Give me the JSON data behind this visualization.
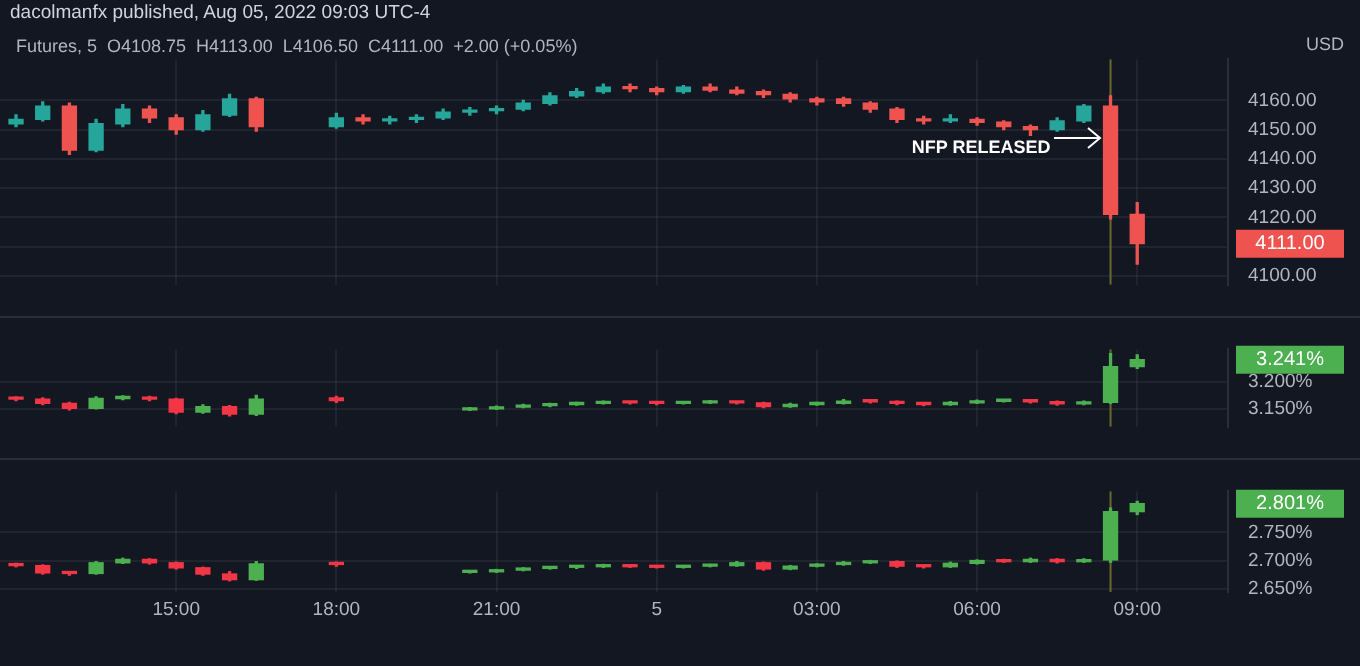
{
  "chart_data": [
    {
      "type": "candlestick",
      "title": "dacolmanfx published, Aug 05, 2022 09:03 UTC-4",
      "subtitle": "Futures, 5  O4108.75  H4113.00  L4106.50  C4111.00  +2.00 (+0.05%)",
      "ylabel": "USD",
      "x": [
        "2022-08-04T12:00",
        "2022-08-04T12:30",
        "2022-08-04T13:00",
        "2022-08-04T13:30",
        "2022-08-04T14:00",
        "2022-08-04T14:30",
        "2022-08-04T15:00",
        "2022-08-04T15:30",
        "2022-08-04T16:00",
        "2022-08-04T16:30",
        "2022-08-04T18:00",
        "2022-08-04T18:30",
        "2022-08-04T19:00",
        "2022-08-04T19:30",
        "2022-08-04T20:00",
        "2022-08-04T20:30",
        "2022-08-04T21:00",
        "2022-08-04T21:30",
        "2022-08-04T22:00",
        "2022-08-04T22:30",
        "2022-08-04T23:00",
        "2022-08-04T23:30",
        "2022-08-05T00:00",
        "2022-08-05T00:30",
        "2022-08-05T01:00",
        "2022-08-05T01:30",
        "2022-08-05T02:00",
        "2022-08-05T02:30",
        "2022-08-05T03:00",
        "2022-08-05T03:30",
        "2022-08-05T04:00",
        "2022-08-05T04:30",
        "2022-08-05T05:00",
        "2022-08-05T05:30",
        "2022-08-05T06:00",
        "2022-08-05T06:30",
        "2022-08-05T07:00",
        "2022-08-05T07:30",
        "2022-08-05T08:00",
        "2022-08-05T08:30",
        "2022-08-05T09:00"
      ],
      "ohlc": [
        [
          4152,
          4155,
          4151,
          4153.5
        ],
        [
          4153.5,
          4159.5,
          4153,
          4158
        ],
        [
          4158,
          4159,
          4141.5,
          4143
        ],
        [
          4143,
          4153.5,
          4142.5,
          4152
        ],
        [
          4152,
          4158.5,
          4151,
          4157
        ],
        [
          4157,
          4158,
          4152.5,
          4154
        ],
        [
          4154,
          4155,
          4148.5,
          4150
        ],
        [
          4150,
          4156.5,
          4149.5,
          4155
        ],
        [
          4155,
          4162,
          4154.5,
          4160.5
        ],
        [
          4160.5,
          4161,
          4149.5,
          4151
        ],
        [
          4151,
          4155.5,
          4150.5,
          4154
        ],
        [
          4154,
          4155,
          4152,
          4153
        ],
        [
          4153,
          4154.5,
          4152,
          4153.5
        ],
        [
          4153.5,
          4155,
          4152.5,
          4154
        ],
        [
          4154,
          4157,
          4153.5,
          4156
        ],
        [
          4156,
          4157.5,
          4155,
          4156.5
        ],
        [
          4156.5,
          4158,
          4155.5,
          4157
        ],
        [
          4157,
          4160,
          4156.5,
          4159
        ],
        [
          4159,
          4162.5,
          4158.5,
          4161.5
        ],
        [
          4161.5,
          4164,
          4161,
          4163
        ],
        [
          4163,
          4165.5,
          4162.5,
          4164.5
        ],
        [
          4164.5,
          4165.5,
          4163,
          4164
        ],
        [
          4164,
          4164.5,
          4162,
          4163
        ],
        [
          4163,
          4165,
          4162.5,
          4164.5
        ],
        [
          4164.5,
          4165.5,
          4163,
          4163.5
        ],
        [
          4163.5,
          4164.5,
          4162,
          4162.5
        ],
        [
          4163,
          4163.5,
          4161,
          4162
        ],
        [
          4162,
          4162.5,
          4159.5,
          4160.5
        ],
        [
          4160.5,
          4161,
          4158.5,
          4159.5
        ],
        [
          4160.5,
          4161,
          4158,
          4159
        ],
        [
          4159,
          4159.5,
          4156,
          4157
        ],
        [
          4157,
          4157.5,
          4152.5,
          4153.5
        ],
        [
          4153.5,
          4154.5,
          4152,
          4153
        ],
        [
          4153,
          4155,
          4152.5,
          4153.5
        ],
        [
          4153.5,
          4154,
          4151.5,
          4152.5
        ],
        [
          4152.5,
          4153,
          4150,
          4151
        ],
        [
          4151,
          4151.5,
          4148,
          4150
        ],
        [
          4150,
          4154,
          4149.5,
          4153
        ],
        [
          4153,
          4158.5,
          4152.5,
          4158
        ],
        [
          4158,
          4161.5,
          4119.5,
          4121
        ],
        [
          4121,
          4125,
          4104,
          4111
        ]
      ],
      "value_labels": [
        null,
        null,
        null,
        null,
        null,
        null,
        null,
        null,
        null,
        null,
        null,
        null,
        null,
        null,
        null,
        null,
        null,
        null,
        null,
        null,
        null,
        null,
        null,
        null,
        null,
        null,
        null,
        null,
        null,
        null,
        null,
        null,
        null,
        null,
        null,
        null,
        null,
        null,
        null,
        null,
        "4111.00"
      ],
      "xlim": [
        "2022-08-04T11:42",
        "2022-08-05T10:42"
      ],
      "xticks": [
        {
          "value": "2022-08-04T15:00",
          "label": null
        },
        {
          "value": "2022-08-04T18:00",
          "label": null
        },
        {
          "value": "2022-08-04T21:00",
          "label": null
        },
        {
          "value": "2022-08-05T00:00",
          "label": null
        },
        {
          "value": "2022-08-05T03:00",
          "label": null
        },
        {
          "value": "2022-08-05T06:00",
          "label": null
        },
        {
          "value": "2022-08-05T09:00",
          "label": null
        }
      ],
      "ylim": [
        4097,
        4174
      ],
      "yticks": [
        {
          "value": 4100,
          "label": "4100.00"
        },
        {
          "value": 4110,
          "label": null
        },
        {
          "value": 4120,
          "label": "4120.00"
        },
        {
          "value": 4130,
          "label": "4130.00"
        },
        {
          "value": 4140,
          "label": "4140.00"
        },
        {
          "value": 4150,
          "label": "4150.00"
        },
        {
          "value": 4160,
          "label": "4160.00"
        }
      ],
      "ref_lines": [
        {
          "axis": "x",
          "value": "2022-08-05T08:30",
          "color": "#6b6a2e"
        }
      ],
      "annotations": [
        "NFP RELEASED"
      ],
      "grid": true,
      "tick_labels": "y"
    },
    {
      "type": "candlestick",
      "x": [
        "2022-08-04T12:00",
        "2022-08-04T12:30",
        "2022-08-04T13:00",
        "2022-08-04T13:30",
        "2022-08-04T14:00",
        "2022-08-04T14:30",
        "2022-08-04T15:00",
        "2022-08-04T15:30",
        "2022-08-04T16:00",
        "2022-08-04T16:30",
        "2022-08-04T18:00",
        "2022-08-04T20:30",
        "2022-08-04T21:00",
        "2022-08-04T21:30",
        "2022-08-04T22:00",
        "2022-08-04T22:30",
        "2022-08-04T23:00",
        "2022-08-04T23:30",
        "2022-08-05T00:00",
        "2022-08-05T00:30",
        "2022-08-05T01:00",
        "2022-08-05T01:30",
        "2022-08-05T02:00",
        "2022-08-05T02:30",
        "2022-08-05T03:00",
        "2022-08-05T03:30",
        "2022-08-05T04:00",
        "2022-08-05T04:30",
        "2022-08-05T05:00",
        "2022-08-05T05:30",
        "2022-08-05T06:00",
        "2022-08-05T06:30",
        "2022-08-05T07:00",
        "2022-08-05T07:30",
        "2022-08-05T08:00",
        "2022-08-05T08:30",
        "2022-08-05T09:00"
      ],
      "ohlc": [
        [
          3.17,
          3.172,
          3.165,
          3.168
        ],
        [
          3.168,
          3.17,
          3.158,
          3.16
        ],
        [
          3.16,
          3.162,
          3.148,
          3.151
        ],
        [
          3.151,
          3.172,
          3.15,
          3.169
        ],
        [
          3.169,
          3.174,
          3.167,
          3.171
        ],
        [
          3.171,
          3.173,
          3.165,
          3.168
        ],
        [
          3.168,
          3.169,
          3.141,
          3.144
        ],
        [
          3.144,
          3.157,
          3.142,
          3.154
        ],
        [
          3.154,
          3.156,
          3.137,
          3.14
        ],
        [
          3.14,
          3.175,
          3.138,
          3.168
        ],
        [
          3.17,
          3.173,
          3.162,
          3.165
        ],
        [
          3.148,
          3.152,
          3.147,
          3.15
        ],
        [
          3.15,
          3.155,
          3.149,
          3.153
        ],
        [
          3.153,
          3.158,
          3.152,
          3.156
        ],
        [
          3.156,
          3.16,
          3.154,
          3.158
        ],
        [
          3.158,
          3.162,
          3.157,
          3.16
        ],
        [
          3.16,
          3.164,
          3.159,
          3.162
        ],
        [
          3.162,
          3.163,
          3.159,
          3.161
        ],
        [
          3.161,
          3.162,
          3.158,
          3.16
        ],
        [
          3.16,
          3.163,
          3.159,
          3.161
        ],
        [
          3.161,
          3.165,
          3.16,
          3.162
        ],
        [
          3.162,
          3.163,
          3.159,
          3.161
        ],
        [
          3.161,
          3.162,
          3.152,
          3.154
        ],
        [
          3.154,
          3.16,
          3.153,
          3.158
        ],
        [
          3.158,
          3.162,
          3.157,
          3.16
        ],
        [
          3.16,
          3.167,
          3.159,
          3.164
        ],
        [
          3.164,
          3.165,
          3.161,
          3.163
        ],
        [
          3.163,
          3.164,
          3.158,
          3.16
        ],
        [
          3.16,
          3.161,
          3.156,
          3.158
        ],
        [
          3.158,
          3.163,
          3.157,
          3.161
        ],
        [
          3.161,
          3.166,
          3.16,
          3.164
        ],
        [
          3.164,
          3.167,
          3.163,
          3.165
        ],
        [
          3.165,
          3.166,
          3.161,
          3.163
        ],
        [
          3.163,
          3.164,
          3.157,
          3.159
        ],
        [
          3.159,
          3.164,
          3.158,
          3.162
        ],
        [
          3.162,
          3.252,
          3.16,
          3.228
        ],
        [
          3.228,
          3.25,
          3.225,
          3.241
        ]
      ],
      "value_labels": [
        null,
        null,
        null,
        null,
        null,
        null,
        null,
        null,
        null,
        null,
        null,
        null,
        null,
        null,
        null,
        null,
        null,
        null,
        null,
        null,
        null,
        null,
        null,
        null,
        null,
        null,
        null,
        null,
        null,
        null,
        null,
        null,
        null,
        null,
        null,
        null,
        "3.241%"
      ],
      "xlim": [
        "2022-08-04T11:42",
        "2022-08-05T10:42"
      ],
      "xticks": [
        {
          "value": "2022-08-04T15:00",
          "label": null
        },
        {
          "value": "2022-08-04T18:00",
          "label": null
        },
        {
          "value": "2022-08-04T21:00",
          "label": null
        },
        {
          "value": "2022-08-05T00:00",
          "label": null
        },
        {
          "value": "2022-08-05T03:00",
          "label": null
        },
        {
          "value": "2022-08-05T06:00",
          "label": null
        },
        {
          "value": "2022-08-05T09:00",
          "label": null
        }
      ],
      "ylim": [
        3.117,
        3.26
      ],
      "yticks": [
        {
          "value": 3.15,
          "label": "3.150%"
        },
        {
          "value": 3.2,
          "label": "3.200%"
        }
      ],
      "ref_lines": [
        {
          "axis": "x",
          "value": "2022-08-05T08:30",
          "color": "#6b6a2e"
        }
      ],
      "grid": true,
      "tick_labels": "y"
    },
    {
      "type": "candlestick",
      "x": [
        "2022-08-04T12:00",
        "2022-08-04T12:30",
        "2022-08-04T13:00",
        "2022-08-04T13:30",
        "2022-08-04T14:00",
        "2022-08-04T14:30",
        "2022-08-04T15:00",
        "2022-08-04T15:30",
        "2022-08-04T16:00",
        "2022-08-04T16:30",
        "2022-08-04T18:00",
        "2022-08-04T20:30",
        "2022-08-04T21:00",
        "2022-08-04T21:30",
        "2022-08-04T22:00",
        "2022-08-04T22:30",
        "2022-08-04T23:00",
        "2022-08-04T23:30",
        "2022-08-05T00:00",
        "2022-08-05T00:30",
        "2022-08-05T01:00",
        "2022-08-05T01:30",
        "2022-08-05T02:00",
        "2022-08-05T02:30",
        "2022-08-05T03:00",
        "2022-08-05T03:30",
        "2022-08-05T04:00",
        "2022-08-05T04:30",
        "2022-08-05T05:00",
        "2022-08-05T05:30",
        "2022-08-05T06:00",
        "2022-08-05T06:30",
        "2022-08-05T07:00",
        "2022-08-05T07:30",
        "2022-08-05T08:00",
        "2022-08-05T08:30",
        "2022-08-05T09:00"
      ],
      "ohlc": [
        [
          2.693,
          2.695,
          2.689,
          2.691
        ],
        [
          2.691,
          2.692,
          2.676,
          2.678
        ],
        [
          2.678,
          2.68,
          2.674,
          2.677
        ],
        [
          2.677,
          2.698,
          2.676,
          2.696
        ],
        [
          2.696,
          2.704,
          2.695,
          2.702
        ],
        [
          2.702,
          2.703,
          2.694,
          2.696
        ],
        [
          2.696,
          2.697,
          2.685,
          2.687
        ],
        [
          2.687,
          2.688,
          2.674,
          2.676
        ],
        [
          2.676,
          2.68,
          2.664,
          2.666
        ],
        [
          2.666,
          2.698,
          2.665,
          2.694
        ],
        [
          2.694,
          2.697,
          2.69,
          2.693
        ],
        [
          2.679,
          2.682,
          2.678,
          2.68
        ],
        [
          2.68,
          2.684,
          2.679,
          2.683
        ],
        [
          2.683,
          2.687,
          2.682,
          2.686
        ],
        [
          2.686,
          2.689,
          2.685,
          2.688
        ],
        [
          2.688,
          2.69,
          2.686,
          2.689
        ],
        [
          2.689,
          2.693,
          2.688,
          2.691
        ],
        [
          2.691,
          2.692,
          2.688,
          2.689
        ],
        [
          2.689,
          2.69,
          2.687,
          2.688
        ],
        [
          2.688,
          2.691,
          2.687,
          2.69
        ],
        [
          2.69,
          2.693,
          2.689,
          2.691
        ],
        [
          2.691,
          2.698,
          2.69,
          2.696
        ],
        [
          2.696,
          2.697,
          2.683,
          2.685
        ],
        [
          2.685,
          2.691,
          2.684,
          2.69
        ],
        [
          2.69,
          2.694,
          2.689,
          2.693
        ],
        [
          2.693,
          2.698,
          2.692,
          2.696
        ],
        [
          2.696,
          2.7,
          2.695,
          2.698
        ],
        [
          2.698,
          2.699,
          2.688,
          2.69
        ],
        [
          2.69,
          2.692,
          2.687,
          2.689
        ],
        [
          2.689,
          2.697,
          2.688,
          2.695
        ],
        [
          2.695,
          2.701,
          2.694,
          2.7
        ],
        [
          2.7,
          2.702,
          2.697,
          2.698
        ],
        [
          2.698,
          2.704,
          2.697,
          2.702
        ],
        [
          2.702,
          2.703,
          2.696,
          2.698
        ],
        [
          2.698,
          2.703,
          2.697,
          2.701
        ],
        [
          2.701,
          2.793,
          2.697,
          2.787
        ],
        [
          2.787,
          2.805,
          2.782,
          2.801
        ]
      ],
      "value_labels": [
        null,
        null,
        null,
        null,
        null,
        null,
        null,
        null,
        null,
        null,
        null,
        null,
        null,
        null,
        null,
        null,
        null,
        null,
        null,
        null,
        null,
        null,
        null,
        null,
        null,
        null,
        null,
        null,
        null,
        null,
        null,
        null,
        null,
        null,
        null,
        null,
        "2.801%"
      ],
      "xlim": [
        "2022-08-04T11:42",
        "2022-08-05T10:42"
      ],
      "xticks": [
        {
          "value": "2022-08-04T15:00",
          "label": "15:00"
        },
        {
          "value": "2022-08-04T18:00",
          "label": "18:00"
        },
        {
          "value": "2022-08-04T21:00",
          "label": "21:00"
        },
        {
          "value": "2022-08-05T00:00",
          "label": "5"
        },
        {
          "value": "2022-08-05T03:00",
          "label": "03:00"
        },
        {
          "value": "2022-08-05T06:00",
          "label": "06:00"
        },
        {
          "value": "2022-08-05T09:00",
          "label": "09:00"
        }
      ],
      "ylim": [
        2.644,
        2.823
      ],
      "yticks": [
        {
          "value": 2.65,
          "label": "2.650%"
        },
        {
          "value": 2.7,
          "label": "2.700%"
        },
        {
          "value": 2.75,
          "label": "2.750%"
        }
      ],
      "ref_lines": [
        {
          "axis": "x",
          "value": "2022-08-05T08:30",
          "color": "#6b6a2e"
        }
      ],
      "grid": true
    }
  ]
}
